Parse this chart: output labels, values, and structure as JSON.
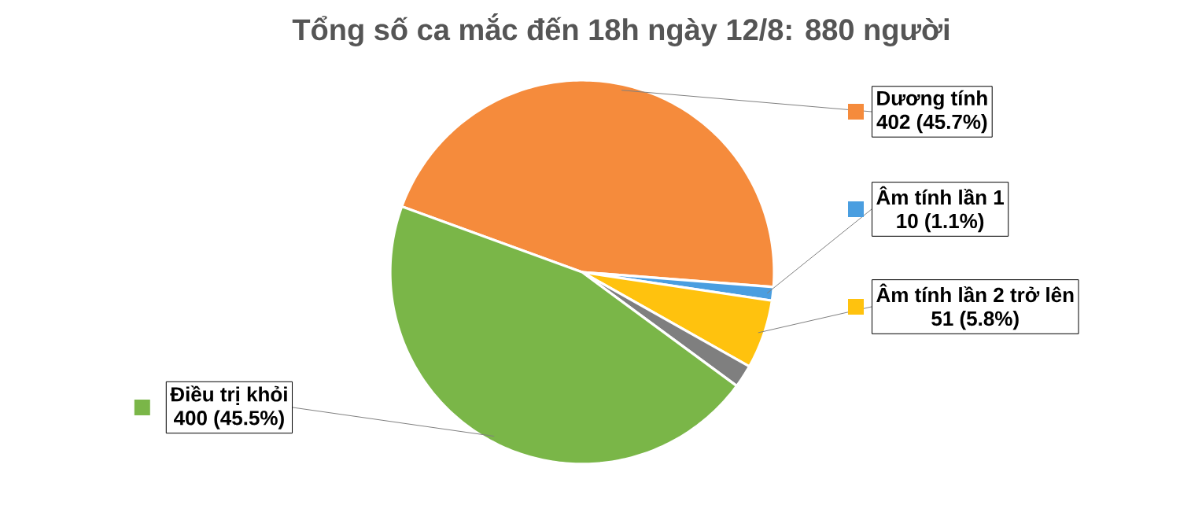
{
  "chart_data": {
    "type": "pie",
    "title": "Tổng số ca mắc đến 18h ngày 12/8: 880 người",
    "categories": [
      "Dương tính",
      "Âm tính lần 1",
      "Âm tính lần 2 trở lên",
      null,
      "Điều trị khỏi"
    ],
    "values": [
      402,
      10,
      51,
      17,
      400
    ],
    "legend": "right",
    "colors": [
      "#f58b3c",
      "#4a9ee0",
      "#ffc20e",
      "#7f7f7f",
      "#7ab648"
    ],
    "value_labels": [
      "402 (45.7%)",
      "10 (1.1%)",
      "51 (5.8%)",
      null,
      "400 (45.5%)"
    ]
  }
}
